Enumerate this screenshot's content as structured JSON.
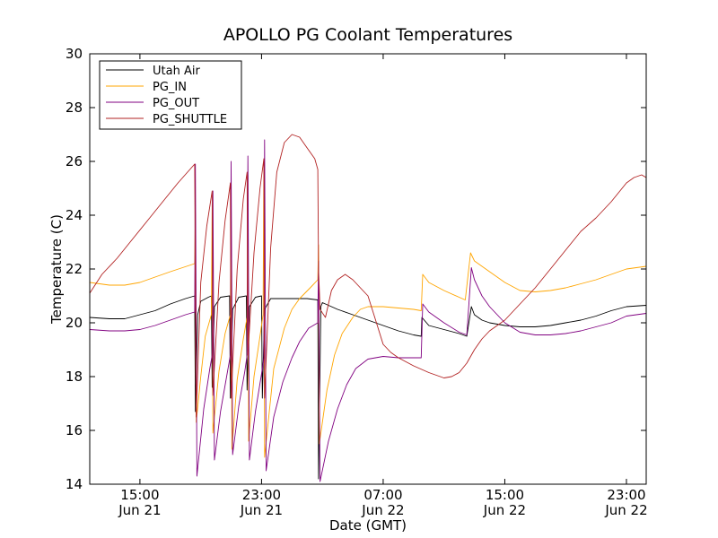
{
  "chart_data": {
    "type": "line",
    "title": "APOLLO PG Coolant Temperatures",
    "xlabel": "Date (GMT)",
    "ylabel": "Temperature (C)",
    "xlim": [
      11.7,
      48.3
    ],
    "ylim": [
      14,
      30
    ],
    "yticks": [
      14,
      16,
      18,
      20,
      22,
      24,
      26,
      28,
      30
    ],
    "ytick_labels": [
      "14",
      "16",
      "18",
      "20",
      "22",
      "24",
      "26",
      "28",
      "30"
    ],
    "xticks": [
      {
        "x": 15,
        "time": "15:00",
        "date": "Jun 21"
      },
      {
        "x": 23,
        "time": "23:00",
        "date": "Jun 21"
      },
      {
        "x": 31,
        "time": "07:00",
        "date": "Jun 22"
      },
      {
        "x": 39,
        "time": "15:00",
        "date": "Jun 22"
      },
      {
        "x": 47,
        "time": "23:00",
        "date": "Jun 22"
      }
    ],
    "x_units": "hours since Jun 21 00:00 GMT",
    "grid": false,
    "legend_position": "top-left",
    "series": [
      {
        "name": "Utah Air",
        "color": "#000000",
        "points": [
          [
            11.7,
            20.2
          ],
          [
            13,
            20.15
          ],
          [
            14,
            20.15
          ],
          [
            15,
            20.3
          ],
          [
            16,
            20.45
          ],
          [
            17,
            20.7
          ],
          [
            18,
            20.9
          ],
          [
            18.6,
            21.0
          ],
          [
            18.65,
            16.7
          ],
          [
            18.8,
            20.3
          ],
          [
            19,
            20.8
          ],
          [
            19.5,
            20.95
          ],
          [
            19.7,
            21.0
          ],
          [
            19.75,
            17.6
          ],
          [
            19.9,
            20.6
          ],
          [
            20.3,
            20.95
          ],
          [
            20.9,
            21.0
          ],
          [
            20.95,
            17.2
          ],
          [
            21.1,
            20.5
          ],
          [
            21.5,
            20.95
          ],
          [
            22,
            21.0
          ],
          [
            22.05,
            17.5
          ],
          [
            22.2,
            20.6
          ],
          [
            22.6,
            20.95
          ],
          [
            23,
            21.0
          ],
          [
            23.05,
            17.2
          ],
          [
            23.2,
            20.5
          ],
          [
            23.6,
            20.9
          ],
          [
            24,
            20.9
          ],
          [
            25,
            20.9
          ],
          [
            26,
            20.9
          ],
          [
            26.7,
            20.85
          ],
          [
            26.75,
            14.2
          ],
          [
            26.9,
            20.6
          ],
          [
            27,
            20.75
          ],
          [
            28,
            20.5
          ],
          [
            29,
            20.3
          ],
          [
            30,
            20.1
          ],
          [
            31,
            19.9
          ],
          [
            32,
            19.7
          ],
          [
            33,
            19.55
          ],
          [
            33.5,
            19.5
          ],
          [
            33.55,
            20.2
          ],
          [
            34,
            19.9
          ],
          [
            35,
            19.75
          ],
          [
            36,
            19.6
          ],
          [
            36.5,
            19.5
          ],
          [
            36.8,
            20.6
          ],
          [
            37,
            20.3
          ],
          [
            37.5,
            20.1
          ],
          [
            38,
            20.0
          ],
          [
            39,
            19.9
          ],
          [
            40,
            19.85
          ],
          [
            41,
            19.85
          ],
          [
            42,
            19.9
          ],
          [
            43,
            20.0
          ],
          [
            44,
            20.1
          ],
          [
            45,
            20.25
          ],
          [
            46,
            20.45
          ],
          [
            47,
            20.6
          ],
          [
            48.3,
            20.65
          ]
        ]
      },
      {
        "name": "PG_IN",
        "color": "#ffa500",
        "points": [
          [
            11.7,
            21.5
          ],
          [
            13,
            21.4
          ],
          [
            14,
            21.4
          ],
          [
            15,
            21.5
          ],
          [
            16,
            21.7
          ],
          [
            17,
            21.9
          ],
          [
            18.6,
            22.2
          ],
          [
            18.65,
            24.1
          ],
          [
            18.7,
            16.3
          ],
          [
            19.0,
            18.0
          ],
          [
            19.3,
            19.5
          ],
          [
            19.7,
            20.3
          ],
          [
            19.75,
            24.4
          ],
          [
            19.8,
            15.9
          ],
          [
            20.2,
            18.2
          ],
          [
            20.6,
            19.6
          ],
          [
            20.95,
            20.3
          ],
          [
            21.0,
            25.0
          ],
          [
            21.05,
            15.3
          ],
          [
            21.4,
            17.9
          ],
          [
            21.8,
            19.4
          ],
          [
            22.05,
            20.2
          ],
          [
            22.1,
            25.5
          ],
          [
            22.15,
            15.6
          ],
          [
            22.5,
            18.0
          ],
          [
            22.9,
            19.5
          ],
          [
            23.1,
            20.3
          ],
          [
            23.15,
            26.0
          ],
          [
            23.2,
            15.0
          ],
          [
            23.8,
            18.3
          ],
          [
            24.5,
            19.8
          ],
          [
            25,
            20.5
          ],
          [
            25.5,
            20.9
          ],
          [
            26.2,
            21.3
          ],
          [
            26.7,
            21.6
          ],
          [
            26.75,
            22.9
          ],
          [
            26.8,
            15.5
          ],
          [
            27.3,
            17.5
          ],
          [
            27.8,
            18.8
          ],
          [
            28.3,
            19.6
          ],
          [
            29,
            20.2
          ],
          [
            29.5,
            20.5
          ],
          [
            30,
            20.6
          ],
          [
            30.5,
            20.6
          ],
          [
            31,
            20.6
          ],
          [
            32,
            20.55
          ],
          [
            33,
            20.5
          ],
          [
            33.5,
            20.45
          ],
          [
            33.6,
            21.8
          ],
          [
            34,
            21.5
          ],
          [
            35,
            21.2
          ],
          [
            36,
            20.95
          ],
          [
            36.4,
            20.85
          ],
          [
            36.75,
            22.6
          ],
          [
            37,
            22.3
          ],
          [
            37.5,
            22.1
          ],
          [
            38,
            21.9
          ],
          [
            39,
            21.5
          ],
          [
            40,
            21.2
          ],
          [
            41,
            21.15
          ],
          [
            42,
            21.2
          ],
          [
            43,
            21.3
          ],
          [
            44,
            21.45
          ],
          [
            45,
            21.6
          ],
          [
            46,
            21.8
          ],
          [
            47,
            22.0
          ],
          [
            48.3,
            22.1
          ]
        ]
      },
      {
        "name": "PG_OUT",
        "color": "#800080",
        "points": [
          [
            11.7,
            19.75
          ],
          [
            13,
            19.7
          ],
          [
            14,
            19.7
          ],
          [
            15,
            19.75
          ],
          [
            16,
            19.9
          ],
          [
            17,
            20.1
          ],
          [
            18,
            20.3
          ],
          [
            18.6,
            20.4
          ],
          [
            18.65,
            25.9
          ],
          [
            18.75,
            14.3
          ],
          [
            19.2,
            16.8
          ],
          [
            19.6,
            18.3
          ],
          [
            19.75,
            18.8
          ],
          [
            19.8,
            24.9
          ],
          [
            19.9,
            14.9
          ],
          [
            20.3,
            16.7
          ],
          [
            20.7,
            18.0
          ],
          [
            20.95,
            18.8
          ],
          [
            21.0,
            26.0
          ],
          [
            21.1,
            15.1
          ],
          [
            21.5,
            16.9
          ],
          [
            21.9,
            18.2
          ],
          [
            22.05,
            18.8
          ],
          [
            22.1,
            26.2
          ],
          [
            22.2,
            14.9
          ],
          [
            22.6,
            16.7
          ],
          [
            23.0,
            18.1
          ],
          [
            23.15,
            18.7
          ],
          [
            23.2,
            26.8
          ],
          [
            23.3,
            14.5
          ],
          [
            23.8,
            16.5
          ],
          [
            24.4,
            17.8
          ],
          [
            25,
            18.7
          ],
          [
            25.5,
            19.3
          ],
          [
            26.1,
            19.8
          ],
          [
            26.7,
            20.0
          ],
          [
            26.75,
            22.3
          ],
          [
            26.85,
            14.1
          ],
          [
            27.4,
            15.6
          ],
          [
            28,
            16.8
          ],
          [
            28.6,
            17.7
          ],
          [
            29.2,
            18.3
          ],
          [
            30,
            18.65
          ],
          [
            31,
            18.75
          ],
          [
            32,
            18.7
          ],
          [
            33,
            18.7
          ],
          [
            33.5,
            18.7
          ],
          [
            33.6,
            20.7
          ],
          [
            34,
            20.4
          ],
          [
            35,
            20.0
          ],
          [
            36,
            19.65
          ],
          [
            36.5,
            19.55
          ],
          [
            36.8,
            22.05
          ],
          [
            37,
            21.6
          ],
          [
            37.5,
            21.0
          ],
          [
            38,
            20.6
          ],
          [
            39,
            20.0
          ],
          [
            40,
            19.65
          ],
          [
            41,
            19.55
          ],
          [
            42,
            19.55
          ],
          [
            43,
            19.6
          ],
          [
            44,
            19.7
          ],
          [
            45,
            19.85
          ],
          [
            46,
            20.0
          ],
          [
            47,
            20.25
          ],
          [
            48.3,
            20.35
          ]
        ]
      },
      {
        "name": "PG_SHUTTLE",
        "color": "#b22222",
        "points": [
          [
            11.7,
            21.1
          ],
          [
            12.5,
            21.8
          ],
          [
            13.5,
            22.4
          ],
          [
            14.5,
            23.1
          ],
          [
            15.5,
            23.8
          ],
          [
            16.5,
            24.5
          ],
          [
            17.5,
            25.2
          ],
          [
            18.6,
            25.9
          ],
          [
            18.65,
            21.2
          ],
          [
            18.7,
            16.5
          ],
          [
            19.0,
            21.5
          ],
          [
            19.4,
            23.6
          ],
          [
            19.75,
            24.9
          ],
          [
            19.8,
            17.3
          ],
          [
            20.2,
            21.5
          ],
          [
            20.6,
            23.8
          ],
          [
            20.95,
            25.2
          ],
          [
            21.0,
            17.2
          ],
          [
            21.4,
            22.0
          ],
          [
            21.8,
            24.6
          ],
          [
            22.05,
            25.6
          ],
          [
            22.1,
            18.8
          ],
          [
            22.5,
            22.6
          ],
          [
            22.9,
            25.0
          ],
          [
            23.15,
            26.1
          ],
          [
            23.2,
            17.2
          ],
          [
            23.6,
            22.8
          ],
          [
            24.0,
            25.6
          ],
          [
            24.5,
            26.7
          ],
          [
            25,
            27.0
          ],
          [
            25.5,
            26.9
          ],
          [
            26,
            26.5
          ],
          [
            26.5,
            26.1
          ],
          [
            26.7,
            25.7
          ],
          [
            26.75,
            22.0
          ],
          [
            26.85,
            20.5
          ],
          [
            27.2,
            20.2
          ],
          [
            27.6,
            21.2
          ],
          [
            28,
            21.6
          ],
          [
            28.5,
            21.8
          ],
          [
            29,
            21.6
          ],
          [
            29.5,
            21.3
          ],
          [
            30,
            21.0
          ],
          [
            30.5,
            20.1
          ],
          [
            31,
            19.2
          ],
          [
            31.5,
            18.9
          ],
          [
            32,
            18.7
          ],
          [
            33,
            18.4
          ],
          [
            34,
            18.15
          ],
          [
            35,
            17.95
          ],
          [
            35.5,
            18.0
          ],
          [
            36,
            18.15
          ],
          [
            36.5,
            18.5
          ],
          [
            37,
            19.0
          ],
          [
            37.5,
            19.4
          ],
          [
            38,
            19.7
          ],
          [
            39,
            20.1
          ],
          [
            40,
            20.7
          ],
          [
            41,
            21.3
          ],
          [
            42,
            22.0
          ],
          [
            43,
            22.7
          ],
          [
            44,
            23.4
          ],
          [
            45,
            23.9
          ],
          [
            46,
            24.5
          ],
          [
            47,
            25.2
          ],
          [
            47.5,
            25.4
          ],
          [
            48,
            25.5
          ],
          [
            48.3,
            25.4
          ]
        ]
      }
    ]
  }
}
